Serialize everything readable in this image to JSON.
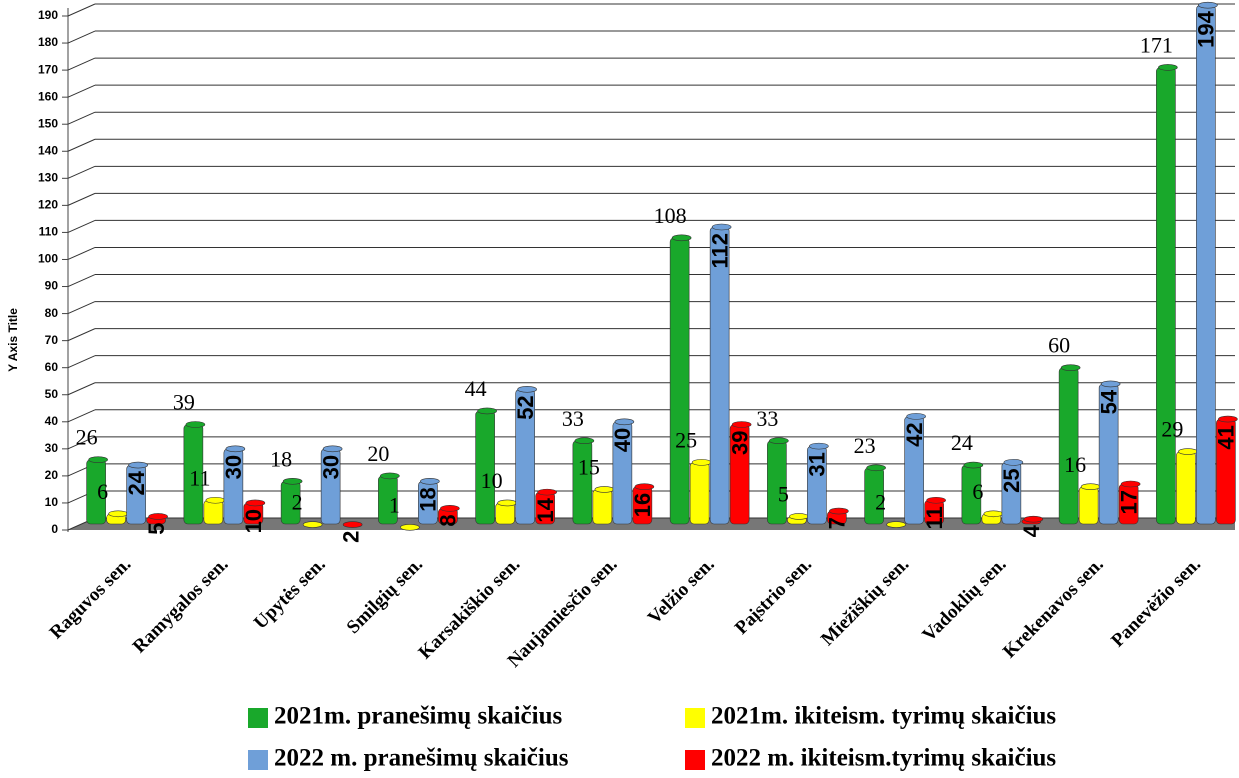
{
  "chart_data": {
    "type": "bar",
    "y_axis_title": "Y Axis Title",
    "categories": [
      "Raguvos sen.",
      "Ramygalos sen.",
      "Upytės sen.",
      "Smilgių sen.",
      "Karsakiškio sen.",
      "Naujamiesčio sen.",
      "Velžio sen.",
      "Paįstrio sen.",
      "Miežiškių sen.",
      "Vadoklių sen.",
      "Krekenavos sen.",
      "Panevėžio sen."
    ],
    "series": [
      {
        "name": "2021m. pranešimų skaičius",
        "color": "#19a82b",
        "values": [
          26,
          39,
          18,
          20,
          44,
          33,
          108,
          33,
          23,
          24,
          60,
          171
        ]
      },
      {
        "name": "2021m. ikiteism. tyrimų skaičius",
        "color": "#ffff00",
        "values": [
          6,
          11,
          2,
          1,
          10,
          15,
          25,
          5,
          2,
          6,
          16,
          29
        ]
      },
      {
        "name": "2022 m. pranešimų skaičius",
        "color": "#6f9fd8",
        "values": [
          24,
          30,
          30,
          18,
          52,
          40,
          112,
          31,
          42,
          25,
          54,
          194
        ]
      },
      {
        "name": "2022 m. ikiteism.tyrimų skaičius",
        "color": "#ff0000",
        "values": [
          5,
          10,
          2,
          8,
          14,
          16,
          39,
          7,
          11,
          4,
          17,
          41
        ]
      }
    ],
    "ylim": [
      0,
      190
    ],
    "yticks": [
      0,
      10,
      20,
      30,
      40,
      50,
      60,
      70,
      80,
      90,
      100,
      110,
      120,
      130,
      140,
      150,
      160,
      170,
      180,
      190
    ],
    "grid": true
  }
}
